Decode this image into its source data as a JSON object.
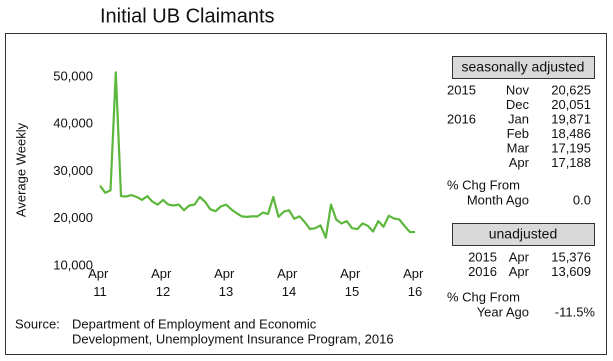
{
  "chart_data": {
    "type": "line",
    "title": "Initial UB Claimants",
    "y_label": "Average Weekly",
    "categories": [
      "Apr 11",
      null,
      null,
      null,
      null,
      null,
      null,
      null,
      null,
      null,
      null,
      null,
      "Apr 12",
      null,
      null,
      null,
      null,
      null,
      null,
      null,
      null,
      null,
      null,
      null,
      "Apr 13",
      null,
      null,
      null,
      null,
      null,
      null,
      null,
      null,
      null,
      null,
      null,
      "Apr 14",
      null,
      null,
      null,
      null,
      null,
      null,
      null,
      null,
      null,
      null,
      null,
      "Apr 15",
      null,
      null,
      null,
      null,
      null,
      null,
      null,
      null,
      null,
      null,
      null,
      "Apr 16"
    ],
    "values": [
      27000,
      25500,
      26000,
      51000,
      24800,
      24700,
      25000,
      24600,
      24000,
      24800,
      23600,
      23000,
      24000,
      23000,
      22800,
      23000,
      21800,
      22800,
      23000,
      24600,
      23600,
      22000,
      21600,
      22600,
      23000,
      22000,
      21200,
      20500,
      20400,
      20500,
      20500,
      21300,
      21000,
      24600,
      20400,
      21500,
      21800,
      20000,
      20500,
      19300,
      17800,
      18000,
      18600,
      16000,
      23000,
      19800,
      19000,
      19500,
      18000,
      17800,
      19000,
      18500,
      17300,
      19500,
      18300,
      20625,
      20051,
      19871,
      18486,
      17195,
      17188
    ],
    "color": "#5cb83c",
    "ylim": [
      10000,
      50000
    ],
    "yticks": [
      {
        "value": 10000,
        "label": "10,000"
      },
      {
        "value": 20000,
        "label": "20,000"
      },
      {
        "value": 30000,
        "label": "30,000"
      },
      {
        "value": 40000,
        "label": "40,000"
      },
      {
        "value": 50000,
        "label": "50,000"
      }
    ],
    "source": [
      "Source:",
      "Department of Employment and Economic",
      "Development, Unemployment Insurance Program, 2016"
    ]
  },
  "panel": {
    "seasonal_heading": "seasonally adjusted",
    "seasonal_rows": [
      [
        "2015",
        "Nov",
        "20,625"
      ],
      [
        null,
        "Dec",
        "20,051"
      ],
      [
        "2016",
        "Jan",
        "19,871"
      ],
      [
        null,
        "Feb",
        "18,486"
      ],
      [
        null,
        "Mar",
        "17,195"
      ],
      [
        null,
        "Apr",
        "17,188"
      ]
    ],
    "month_change": [
      "% Chg From",
      "Month Ago",
      "0.0"
    ],
    "unadjusted_heading": "unadjusted",
    "unadjusted_rows": [
      [
        "2015",
        "Apr",
        "15,376"
      ],
      [
        "2016",
        "Apr",
        "13,609"
      ]
    ],
    "year_change": [
      "% Chg From",
      "Year Ago",
      "-11.5%"
    ]
  }
}
